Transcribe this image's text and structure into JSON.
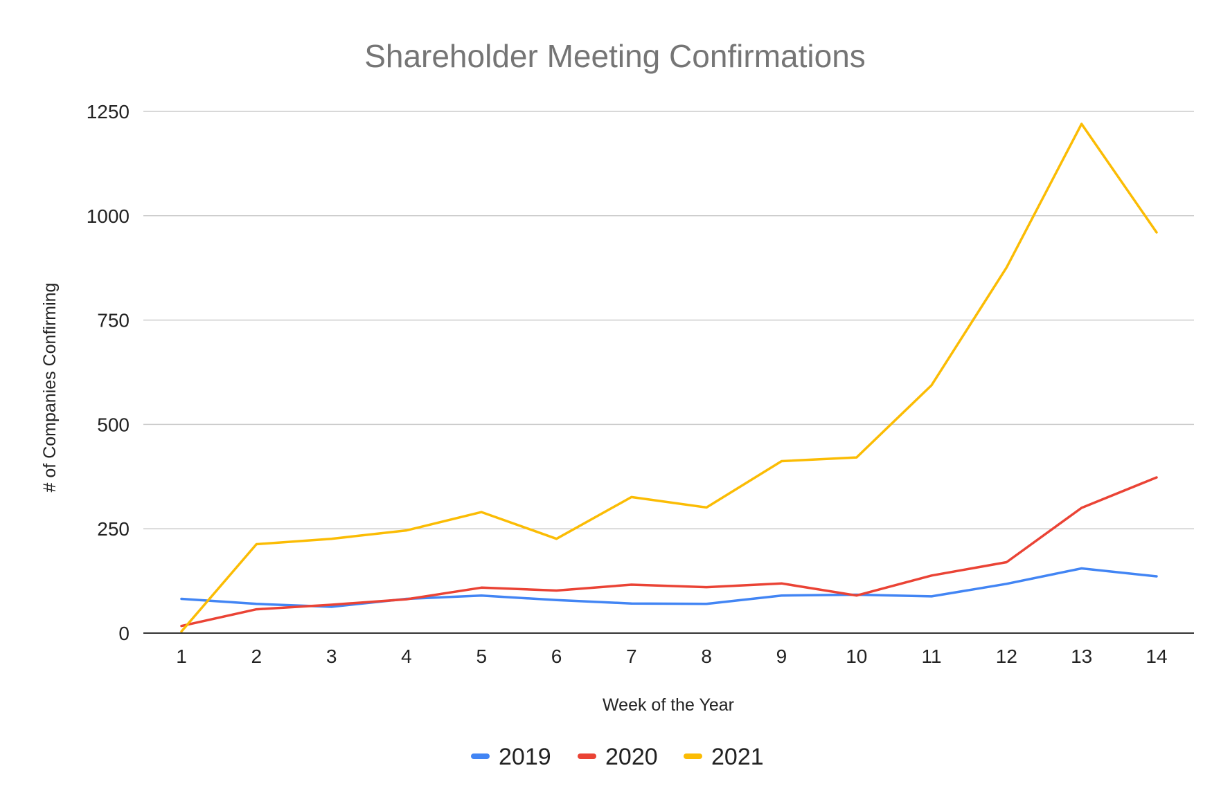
{
  "chart_data": {
    "type": "line",
    "title": "Shareholder Meeting Confirmations",
    "xlabel": "Week of the Year",
    "ylabel": "# of Companies Confirming",
    "categories": [
      "1",
      "2",
      "3",
      "4",
      "5",
      "6",
      "7",
      "8",
      "9",
      "10",
      "11",
      "12",
      "13",
      "14"
    ],
    "ylim": [
      0,
      1250
    ],
    "yticks": [
      "0",
      "250",
      "500",
      "750",
      "1000",
      "1250"
    ],
    "grid": true,
    "legend_position": "bottom",
    "series": [
      {
        "name": "2019",
        "color": "#4285f4",
        "values": [
          82,
          70,
          63,
          82,
          90,
          79,
          71,
          70,
          90,
          92,
          88,
          118,
          155,
          136
        ]
      },
      {
        "name": "2020",
        "color": "#ea4335",
        "values": [
          17,
          57,
          68,
          81,
          109,
          102,
          116,
          110,
          119,
          90,
          138,
          170,
          300,
          373
        ]
      },
      {
        "name": "2021",
        "color": "#fbbc04",
        "values": [
          4,
          213,
          226,
          246,
          290,
          226,
          326,
          301,
          412,
          421,
          594,
          876,
          1220,
          960
        ]
      }
    ]
  }
}
